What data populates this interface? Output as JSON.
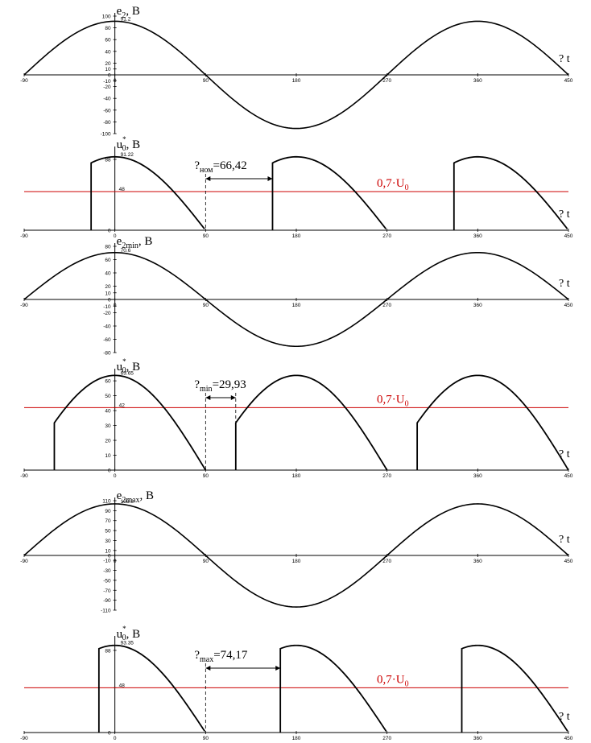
{
  "colors": {
    "curve": "#000000",
    "threshold_line": "#cc0000",
    "axis": "#000000"
  },
  "x_axis_label": "? t",
  "x_ticks": [
    -90,
    0,
    90,
    180,
    270,
    360,
    450
  ],
  "chart_data": [
    {
      "type": "line",
      "title_main": "e",
      "title_sub": "2",
      "title_unit": ", B",
      "peak_label": "91.2",
      "xlim": [
        -90,
        450
      ],
      "ylim": [
        -100,
        100
      ],
      "y_ticks": [
        -100,
        -80,
        -60,
        -40,
        -20,
        -10,
        0,
        10,
        20,
        40,
        60,
        80,
        100
      ],
      "series": [
        {
          "kind": "sine",
          "amplitude": 91.2
        }
      ]
    },
    {
      "type": "line",
      "title_main": "u",
      "title_sub": "0",
      "title_sup": "*",
      "title_unit": ", B",
      "peak_label": "91.22",
      "threshold_tick_label": "48",
      "threshold": 48,
      "threshold_label_main": "0,7·U",
      "threshold_label_sub": "0",
      "interval_label_main": "?",
      "interval_label_sub": "ном",
      "interval_label_value": "=66,42",
      "interval": [
        90,
        156.42
      ],
      "xlim": [
        -90,
        450
      ],
      "ylim": [
        0,
        100
      ],
      "y_ticks": [
        0,
        48,
        88
      ],
      "series": [
        {
          "kind": "rectified",
          "amplitude": 91.2,
          "cutoff": 66.42
        }
      ]
    },
    {
      "type": "line",
      "title_main": "e",
      "title_sub": "2min",
      "title_unit": ", B",
      "peak_label": "70.6",
      "xlim": [
        -90,
        450
      ],
      "ylim": [
        -80,
        80
      ],
      "y_ticks": [
        -80,
        -60,
        -40,
        -20,
        -10,
        0,
        10,
        20,
        40,
        60,
        80
      ],
      "series": [
        {
          "kind": "sine",
          "amplitude": 70.6
        }
      ]
    },
    {
      "type": "line",
      "title_main": "u",
      "title_sub": "0",
      "title_sup": "*",
      "title_unit": ", B",
      "peak_label": "63.65",
      "threshold_tick_label": "42",
      "threshold": 42,
      "threshold_label_main": "0,7·U",
      "threshold_label_sub": "0",
      "interval_label_main": "?",
      "interval_label_sub": "min",
      "interval_label_value": "=29,93",
      "interval": [
        90,
        119.93
      ],
      "xlim": [
        -90,
        450
      ],
      "ylim": [
        0,
        66
      ],
      "y_ticks": [
        0,
        10,
        20,
        30,
        40,
        42,
        50,
        60
      ],
      "series": [
        {
          "kind": "rectified",
          "amplitude": 63.65,
          "cutoff": 29.93
        }
      ]
    },
    {
      "type": "line",
      "title_main": "e",
      "title_sub": "2max",
      "title_unit": ", B",
      "peak_label": "103.6",
      "xlim": [
        -90,
        450
      ],
      "ylim": [
        -110,
        110
      ],
      "y_ticks": [
        -110,
        -90,
        -70,
        -50,
        -30,
        -10,
        0,
        10,
        30,
        50,
        70,
        90,
        110
      ],
      "series": [
        {
          "kind": "sine",
          "amplitude": 103.6
        }
      ]
    },
    {
      "type": "line",
      "title_main": "u",
      "title_sub": "0",
      "title_sup": "*",
      "title_unit": ", B",
      "peak_label": "93.35",
      "threshold_tick_label": "48",
      "threshold": 48,
      "threshold_label_main": "0,7·U",
      "threshold_label_sub": "0",
      "interval_label_main": "?",
      "interval_label_sub": "max",
      "interval_label_value": "=74,17",
      "interval": [
        90,
        164.17
      ],
      "xlim": [
        -90,
        450
      ],
      "ylim": [
        0,
        100
      ],
      "y_ticks": [
        0,
        48,
        88
      ],
      "series": [
        {
          "kind": "rectified",
          "amplitude": 93.35,
          "cutoff": 74.17
        }
      ]
    }
  ]
}
